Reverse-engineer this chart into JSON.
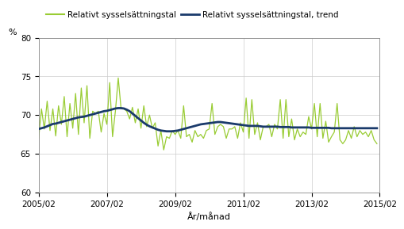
{
  "ylabel": "%",
  "xlabel": "År/månad",
  "ylim": [
    60,
    80
  ],
  "yticks": [
    60,
    65,
    70,
    75,
    80
  ],
  "xtick_labels": [
    "2005/02",
    "2007/02",
    "2009/02",
    "2011/02",
    "2013/02",
    "2015/02"
  ],
  "xtick_positions": [
    0,
    24,
    48,
    72,
    96,
    120
  ],
  "legend_label_green": "Relativt sysselsättningstal",
  "legend_label_blue": "Relativt sysselsättningstal, trend",
  "green_color": "#99cc33",
  "blue_color": "#1a3a6b",
  "xlim": [
    0,
    120
  ],
  "green_values": [
    67.0,
    70.8,
    68.2,
    71.8,
    68.0,
    70.8,
    67.3,
    71.2,
    68.8,
    72.4,
    67.2,
    71.5,
    68.3,
    72.8,
    67.5,
    73.5,
    69.0,
    73.8,
    67.0,
    70.5,
    70.2,
    70.5,
    67.8,
    70.2,
    68.8,
    74.2,
    67.2,
    70.5,
    74.8,
    70.8,
    70.8,
    70.5,
    69.5,
    71.0,
    69.0,
    70.8,
    68.3,
    71.2,
    68.5,
    70.0,
    68.3,
    69.0,
    66.0,
    68.0,
    65.5,
    67.2,
    67.0,
    68.0,
    67.5,
    68.0,
    67.0,
    71.2,
    67.2,
    67.5,
    66.5,
    68.0,
    67.2,
    67.5,
    67.0,
    68.0,
    68.2,
    71.5,
    67.5,
    68.5,
    68.8,
    68.5,
    67.0,
    68.2,
    68.2,
    68.5,
    67.0,
    69.0,
    67.8,
    72.2,
    67.0,
    72.0,
    67.5,
    69.0,
    66.8,
    68.5,
    68.5,
    68.8,
    67.2,
    68.8,
    68.2,
    72.0,
    67.0,
    72.0,
    67.2,
    69.5,
    66.8,
    68.2,
    67.2,
    67.8,
    67.5,
    69.8,
    68.2,
    71.5,
    67.2,
    71.5,
    67.0,
    69.2,
    66.5,
    67.2,
    67.8,
    71.5,
    66.8,
    66.3,
    66.8,
    68.0,
    67.0,
    68.5,
    67.2,
    68.0,
    67.5,
    67.8,
    67.2,
    68.0,
    66.8,
    66.3
  ],
  "trend_values": [
    68.2,
    68.3,
    68.4,
    68.55,
    68.7,
    68.85,
    68.9,
    69.0,
    69.1,
    69.2,
    69.3,
    69.4,
    69.5,
    69.6,
    69.7,
    69.75,
    69.8,
    69.9,
    70.0,
    70.1,
    70.2,
    70.3,
    70.4,
    70.5,
    70.55,
    70.65,
    70.75,
    70.85,
    70.9,
    70.9,
    70.85,
    70.7,
    70.5,
    70.2,
    69.9,
    69.6,
    69.3,
    69.0,
    68.75,
    68.55,
    68.4,
    68.25,
    68.1,
    68.0,
    67.95,
    67.9,
    67.9,
    67.9,
    67.95,
    68.0,
    68.1,
    68.2,
    68.3,
    68.4,
    68.5,
    68.6,
    68.7,
    68.8,
    68.85,
    68.9,
    68.95,
    69.0,
    69.05,
    69.1,
    69.1,
    69.05,
    69.0,
    68.95,
    68.9,
    68.85,
    68.8,
    68.75,
    68.7,
    68.65,
    68.6,
    68.6,
    68.6,
    68.6,
    68.55,
    68.5,
    68.5,
    68.5,
    68.5,
    68.5,
    68.5,
    68.45,
    68.45,
    68.45,
    68.45,
    68.4,
    68.4,
    68.4,
    68.4,
    68.4,
    68.4,
    68.4,
    68.35,
    68.35,
    68.35,
    68.35,
    68.35,
    68.35,
    68.35,
    68.3,
    68.3,
    68.3,
    68.3,
    68.3,
    68.3,
    68.3,
    68.3,
    68.3,
    68.3,
    68.3,
    68.3,
    68.3,
    68.3,
    68.3,
    68.3,
    68.3
  ]
}
